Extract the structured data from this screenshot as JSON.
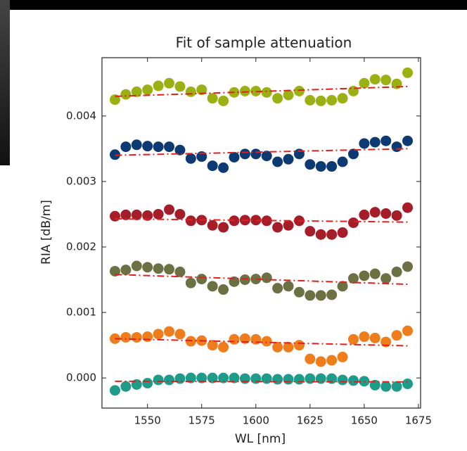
{
  "chart_data": {
    "type": "scatter",
    "title": "Fit of sample attenuation",
    "xlabel": "WL [nm]",
    "ylabel": "RIA [dB/m]",
    "x": [
      1535,
      1540,
      1545,
      1550,
      1555,
      1560,
      1565,
      1570,
      1575,
      1580,
      1585,
      1590,
      1595,
      1600,
      1605,
      1610,
      1615,
      1620,
      1625,
      1630,
      1635,
      1640,
      1645,
      1650,
      1655,
      1660,
      1665,
      1670
    ],
    "xlim": [
      1529,
      1676
    ],
    "xticks": [
      1550,
      1575,
      1600,
      1625,
      1650,
      1675
    ],
    "ylim": [
      -0.00046,
      0.00489
    ],
    "yticks": [
      {
        "value": 0,
        "label": "0.000"
      },
      0.001,
      0.002,
      0.003,
      0.004
    ],
    "fit_x": [
      1535,
      1670
    ],
    "fit_color": "#e0201c",
    "series": [
      {
        "color": "#9bb012",
        "values": [
          0.00425,
          0.00433,
          0.00437,
          0.0044,
          0.00446,
          0.0045,
          0.00445,
          0.00437,
          0.0044,
          0.00427,
          0.00423,
          0.00436,
          0.00438,
          0.00438,
          0.00436,
          0.00427,
          0.00432,
          0.00438,
          0.00424,
          0.00423,
          0.00424,
          0.00427,
          0.00438,
          0.0045,
          0.00456,
          0.00455,
          0.00449,
          0.00466
        ],
        "fit": [
          0.0043,
          0.00445
        ]
      },
      {
        "color": "#0d3a73",
        "values": [
          0.00341,
          0.00353,
          0.00356,
          0.00354,
          0.00353,
          0.00353,
          0.00348,
          0.00335,
          0.00338,
          0.00324,
          0.00321,
          0.00337,
          0.00342,
          0.00342,
          0.00339,
          0.0033,
          0.00334,
          0.00342,
          0.00326,
          0.00323,
          0.00323,
          0.0033,
          0.00342,
          0.00358,
          0.0036,
          0.00362,
          0.00353,
          0.00362
        ],
        "fit": [
          0.0034,
          0.0035
        ]
      },
      {
        "color": "#a51d28",
        "values": [
          0.00247,
          0.00249,
          0.00249,
          0.00248,
          0.0025,
          0.00257,
          0.0025,
          0.0024,
          0.00241,
          0.00233,
          0.0023,
          0.0024,
          0.00241,
          0.00241,
          0.0024,
          0.0023,
          0.00233,
          0.0024,
          0.00224,
          0.00219,
          0.00219,
          0.00222,
          0.00237,
          0.00249,
          0.00253,
          0.00251,
          0.00248,
          0.0026
        ],
        "fit": [
          0.00243,
          0.00238
        ]
      },
      {
        "color": "#6b7143",
        "values": [
          0.00163,
          0.00165,
          0.00171,
          0.00169,
          0.00167,
          0.00166,
          0.00162,
          0.00145,
          0.00151,
          0.0014,
          0.00135,
          0.00147,
          0.0015,
          0.00151,
          0.00153,
          0.00137,
          0.0014,
          0.00131,
          0.00126,
          0.00126,
          0.00127,
          0.0014,
          0.00152,
          0.00156,
          0.00159,
          0.00152,
          0.00162,
          0.0017
        ],
        "fit": [
          0.00158,
          0.00143
        ]
      },
      {
        "color": "#ef7d1c",
        "values": [
          0.0006,
          0.00062,
          0.00062,
          0.00063,
          0.00067,
          0.00071,
          0.00067,
          0.00056,
          0.00057,
          0.0005,
          0.00047,
          0.00059,
          0.0006,
          0.00059,
          0.00056,
          0.00047,
          0.00047,
          0.0005,
          0.00029,
          0.00025,
          0.00027,
          0.00032,
          0.00059,
          0.00063,
          0.00061,
          0.00055,
          0.00065,
          0.00072
        ],
        "fit": [
          0.0006,
          0.00049
        ]
      },
      {
        "color": "#1f9b8a",
        "values": [
          -0.00019,
          -0.00013,
          -0.0001,
          -8e-05,
          -3e-05,
          -3e-05,
          -1e-05,
          0,
          0,
          0,
          0,
          0,
          -1e-05,
          -1e-05,
          -1e-05,
          -2e-05,
          -2e-05,
          -2e-05,
          -1e-05,
          -1e-05,
          -1e-05,
          -3e-05,
          -4e-05,
          -5e-05,
          -0.00011,
          -0.00013,
          -0.00013,
          -9e-05
        ],
        "fit": [
          -5e-05,
          -6e-05
        ]
      }
    ]
  }
}
